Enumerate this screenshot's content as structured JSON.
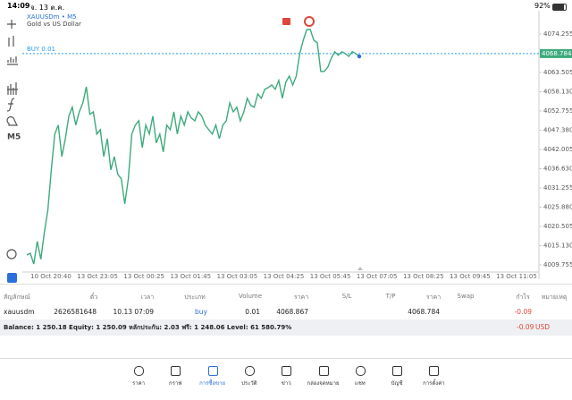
{
  "status_bar": {
    "time": "14:09",
    "date": "จ. 13 ต.ค.",
    "battery": "92%"
  },
  "chart_data": {
    "type": "line",
    "symbol": "XAUUSDm • M5",
    "description": "Gold vs US Dollar",
    "timeframe": "M5",
    "color": "#3daa7c",
    "values": [
      4012.5,
      4013.0,
      4010.0,
      4016.3,
      4011.3,
      4018.8,
      4025.0,
      4036.3,
      4046.3,
      4048.8,
      4040.0,
      4045.0,
      4051.3,
      4053.8,
      4048.8,
      4052.5,
      4055.0,
      4059.5,
      4051.8,
      4052.5,
      4046.3,
      4047.5,
      4040.0,
      4045.0,
      4036.3,
      4040.0,
      4035.0,
      4033.8,
      4026.8,
      4033.8,
      4046.3,
      4048.8,
      4050.0,
      4042.5,
      4048.8,
      4046.3,
      4051.3,
      4043.8,
      4046.3,
      4041.3,
      4048.8,
      4047.5,
      4052.5,
      4046.3,
      4051.3,
      4048.8,
      4052.5,
      4050.8,
      4050.0,
      4052.5,
      4051.3,
      4048.8,
      4047.5,
      4046.3,
      4048.8,
      4045.0,
      4048.8,
      4050.0,
      4055.0,
      4052.5,
      4053.8,
      4050.0,
      4052.5,
      4056.3,
      4054.3,
      4053.8,
      4057.5,
      4056.3,
      4058.8,
      4059.3,
      4060.0,
      4058.8,
      4061.3,
      4056.3,
      4060.8,
      4062.5,
      4060.0,
      4062.5,
      4068.8,
      4072.5,
      4075.5,
      4075.5,
      4072.5,
      4071.8,
      4063.8,
      4063.8,
      4065.0,
      4067.5,
      4069.3,
      4068.3,
      4069.3,
      4068.8,
      4068.0,
      4069.3,
      4068.8,
      4068.0
    ],
    "ylim": [
      4008.255,
      4081.255
    ],
    "yticks": [
      {
        "value": 4074.255,
        "label": "4074.255"
      },
      {
        "value": 4063.505,
        "label": "4063.505"
      },
      {
        "value": 4058.13,
        "label": "4058.130"
      },
      {
        "value": 4052.755,
        "label": "4052.755"
      },
      {
        "value": 4047.38,
        "label": "4047.380"
      },
      {
        "value": 4042.005,
        "label": "4042.005"
      },
      {
        "value": 4036.63,
        "label": "4036.630"
      },
      {
        "value": 4031.255,
        "label": "4031.255"
      },
      {
        "value": 4025.88,
        "label": "4025.880"
      },
      {
        "value": 4020.505,
        "label": "4020.505"
      },
      {
        "value": 4015.13,
        "label": "4015.130"
      },
      {
        "value": 4009.755,
        "label": "4009.755"
      }
    ],
    "current_price": {
      "value": 4068.784,
      "label": "4068.784"
    },
    "position_line": {
      "label": "BUY 0.01",
      "color": "#2a9df4"
    },
    "xticks": [
      "10 Oct 20:40",
      "13 Oct 23:05",
      "13 Oct 00:25",
      "13 Oct 01:45",
      "13 Oct 03:05",
      "13 Oct 04:25",
      "13 Oct 05:45",
      "13 Oct 07:05",
      "13 Oct 08:25",
      "13 Oct 09:45",
      "13 Oct 11:05"
    ]
  },
  "table": {
    "headers": [
      "สัญลักษณ์",
      "ตั๋ว",
      "เวลา",
      "ประเภท",
      "Volume",
      "ราคา",
      "S/L",
      "T/P",
      "ราคา",
      "Swap",
      "กำไร",
      "หมายเหตุ"
    ],
    "row": {
      "symbol": "xauusdm",
      "ticket": "2626581648",
      "time": "10.13 07:09",
      "type": "buy",
      "volume": "0.01",
      "open_price": "4068.867",
      "current_price": "4068.784",
      "profit": "-0.09"
    },
    "summary": "Balance: 1 250.18 Equity: 1 250.09 หลักประกัน: 2.03 ฟรี: 1 248.06 Level: 61 580.79%",
    "summary_profit": "-0.09",
    "currency": "USD"
  },
  "nav": [
    "ราคา",
    "กราฟ",
    "การซื้อขาย",
    "ประวัติ",
    "ข่าว",
    "กล่องจดหมาย",
    "แชท",
    "บัญชี",
    "การตั้งค่า"
  ],
  "nav_active": 2
}
